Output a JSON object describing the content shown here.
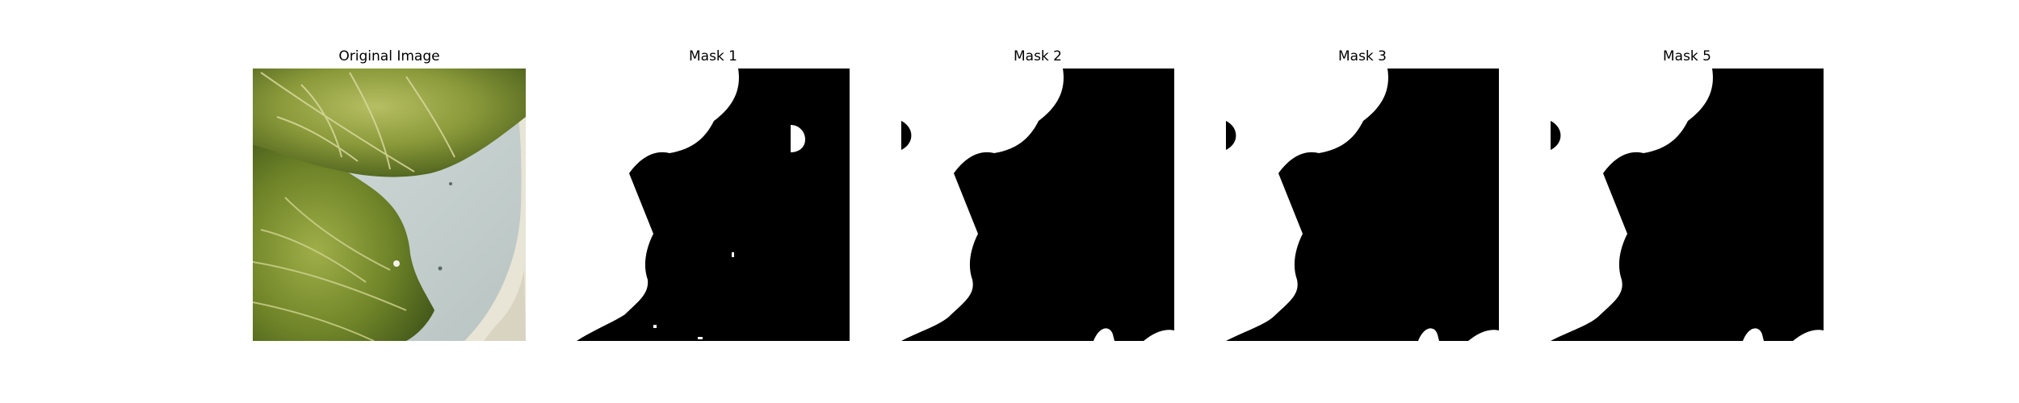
{
  "figure": {
    "panels": [
      {
        "title": "Original Image",
        "kind": "photo"
      },
      {
        "title": "Mask 1",
        "kind": "mask"
      },
      {
        "title": "Mask 2",
        "kind": "mask"
      },
      {
        "title": "Mask 3",
        "kind": "mask"
      },
      {
        "title": "Mask 5",
        "kind": "mask"
      }
    ]
  },
  "colors": {
    "mask_foreground": "#ffffff",
    "mask_background": "#000000",
    "leaf_dark": "#4f6b1f",
    "leaf_light": "#a9b85a",
    "plate": "#c9d3d2"
  }
}
